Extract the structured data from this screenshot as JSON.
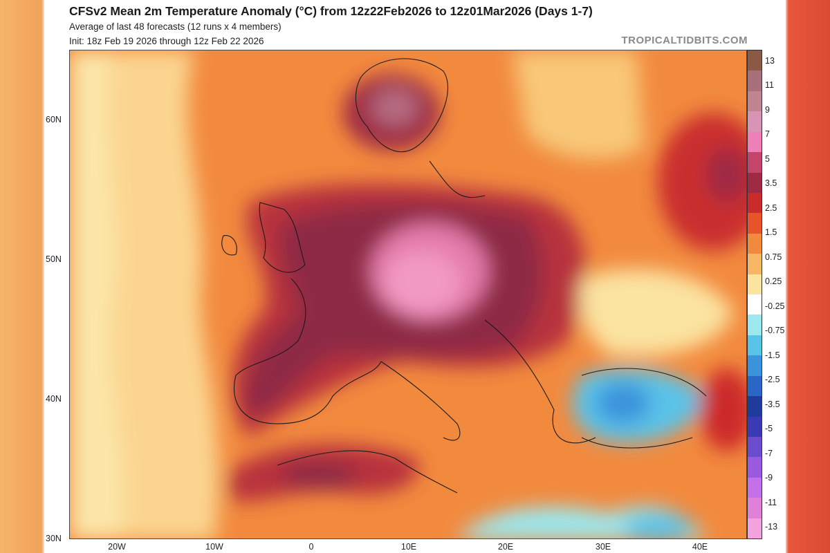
{
  "header": {
    "title": "CFSv2 Mean 2m Temperature Anomaly (°C) from 12z22Feb2026 to 12z01Mar2026 (Days 1-7)",
    "subtitle1": "Average of last 48 forecasts (12 runs x 4 members)",
    "subtitle2": "Init: 18z Feb 19 2026 through 12z Feb 22 2026",
    "brand": "TROPICALTIDBITS.COM"
  },
  "axes": {
    "lat_labels": [
      "60N",
      "50N",
      "40N",
      "30N"
    ],
    "lon_labels": [
      "20W",
      "10W",
      "0",
      "10E",
      "20E",
      "30E",
      "40E"
    ]
  },
  "colorbar": {
    "labels": [
      "13",
      "11",
      "9",
      "7",
      "5",
      "3.5",
      "2.5",
      "1.5",
      "0.75",
      "0.25",
      "-0.25",
      "-0.75",
      "-1.5",
      "-2.5",
      "-3.5",
      "-5",
      "-7",
      "-9",
      "-11",
      "-13"
    ],
    "colors": [
      "#8a5a44",
      "#a8707a",
      "#c08590",
      "#d894b4",
      "#ee7fb8",
      "#c4456a",
      "#9e2a44",
      "#cc2b2b",
      "#e8532c",
      "#f28a3e",
      "#f6b765",
      "#fbe3a0",
      "#ffffff",
      "#9be8ef",
      "#5ac3e8",
      "#3b93db",
      "#2a66c6",
      "#1d3c9c",
      "#3a3ab4",
      "#6b4ccc",
      "#9a5ae0",
      "#c470e8",
      "#e080d8",
      "#f2a2dc"
    ]
  }
}
